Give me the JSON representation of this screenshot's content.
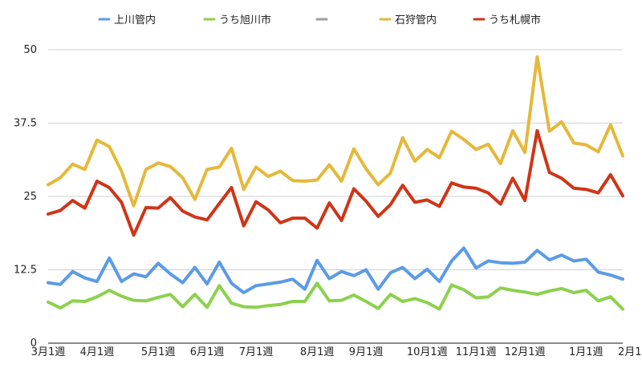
{
  "chart_data": {
    "type": "line",
    "ylim": [
      0,
      50
    ],
    "yticks": [
      "0",
      "12.5",
      "25",
      "37.5",
      "50"
    ],
    "x_tick_labels": [
      "3月1週",
      "4月1週",
      "5月1週",
      "6月1週",
      "7月1週",
      "8月1週",
      "9月1週",
      "10月1週",
      "11月1週",
      "12月1週",
      "1月1週",
      "2月1週"
    ],
    "x_tick_positions": [
      0,
      4,
      9,
      13,
      17,
      22,
      26,
      31,
      35,
      39,
      44,
      48
    ],
    "grid": true,
    "legend_position": "top",
    "series": [
      {
        "name": "上川管内",
        "color": "#5b9be6",
        "values": [
          10.3,
          10.0,
          12.2,
          11.1,
          10.5,
          14.5,
          10.5,
          11.8,
          11.3,
          13.6,
          11.8,
          10.3,
          12.9,
          10.1,
          13.8,
          10.2,
          8.6,
          9.8,
          10.1,
          10.4,
          10.9,
          9.2,
          14.1,
          11.0,
          12.2,
          11.5,
          12.5,
          9.2,
          12.0,
          12.9,
          11.0,
          12.6,
          10.5,
          14.0,
          16.2,
          12.8,
          14.0,
          13.7,
          13.6,
          13.8,
          15.8,
          14.2,
          15.0,
          14.0,
          14.3,
          12.1,
          11.6,
          10.9
        ]
      },
      {
        "name": "うち旭川市",
        "color": "#8cd14e",
        "values": [
          7.0,
          6.0,
          7.2,
          7.1,
          7.9,
          9.0,
          8.0,
          7.3,
          7.2,
          7.8,
          8.3,
          6.2,
          8.3,
          6.1,
          9.8,
          6.8,
          6.2,
          6.1,
          6.4,
          6.6,
          7.1,
          7.1,
          10.2,
          7.2,
          7.3,
          8.2,
          7.1,
          5.9,
          8.3,
          7.1,
          7.6,
          6.9,
          5.8,
          9.9,
          9.1,
          7.7,
          7.9,
          9.4,
          9.0,
          8.7,
          8.3,
          8.9,
          9.3,
          8.6,
          9.0,
          7.2,
          7.9,
          5.8
        ]
      },
      {
        "name": "―",
        "color": "#9e9e9e",
        "values": []
      },
      {
        "name": "石狩管内",
        "color": "#e6b83a",
        "values": [
          27.0,
          28.2,
          30.5,
          29.6,
          34.6,
          33.5,
          29.3,
          23.4,
          29.6,
          30.7,
          30.1,
          28.2,
          24.5,
          29.6,
          30.0,
          33.2,
          26.2,
          30.0,
          28.4,
          29.3,
          27.7,
          27.6,
          27.8,
          30.4,
          27.6,
          33.1,
          29.7,
          27.0,
          29.0,
          35.0,
          31.0,
          33.0,
          31.6,
          36.1,
          34.7,
          33.0,
          33.9,
          30.6,
          36.2,
          32.5,
          48.8,
          36.1,
          37.7,
          34.1,
          33.8,
          32.6,
          37.2,
          31.9
        ]
      },
      {
        "name": "うち札幌市",
        "color": "#cf3518",
        "values": [
          22.0,
          22.6,
          24.3,
          23.0,
          27.6,
          26.5,
          24.0,
          18.4,
          23.1,
          23.0,
          24.8,
          22.5,
          21.5,
          21.0,
          23.8,
          26.5,
          20.0,
          24.1,
          22.7,
          20.5,
          21.3,
          21.3,
          19.6,
          23.9,
          20.9,
          26.3,
          24.2,
          21.6,
          23.6,
          26.9,
          24.0,
          24.4,
          23.3,
          27.3,
          26.6,
          26.4,
          25.6,
          23.7,
          28.1,
          24.3,
          36.2,
          29.1,
          28.1,
          26.4,
          26.2,
          25.6,
          28.7,
          25.1
        ]
      }
    ]
  }
}
